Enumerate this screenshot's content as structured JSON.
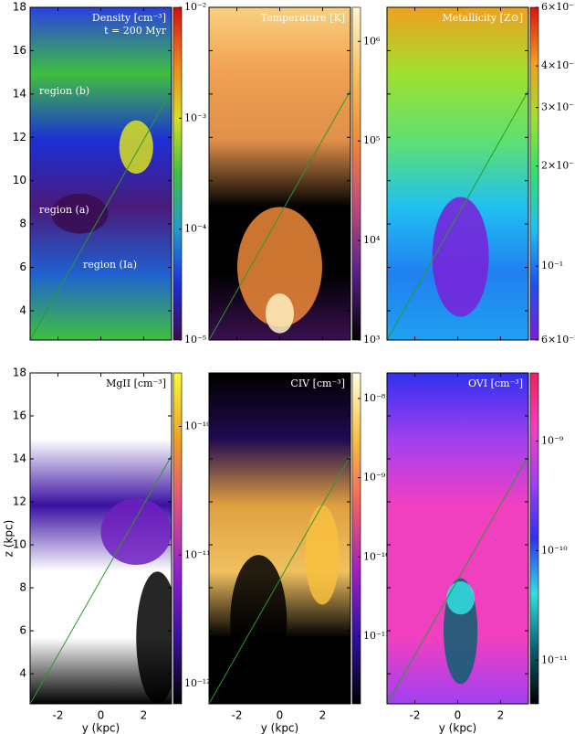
{
  "chart_data": [
    {
      "type": "heatmap",
      "title": "Density [cm⁻³]",
      "subtitle": "t = 200 Myr",
      "annotations": [
        "region (b)",
        "region (a)",
        "region (Ia)"
      ],
      "xlim": [
        -3.3,
        3.3
      ],
      "xticks": [
        -2,
        0,
        2
      ],
      "ylim": [
        2.65,
        18
      ],
      "yticks": [
        4,
        6,
        8,
        10,
        12,
        14,
        16,
        18
      ],
      "xtick_labels": false,
      "ytick_labels": true,
      "colorbar": {
        "log": true,
        "lim": [
          1e-05,
          0.01
        ],
        "colors": [
          "#3a0c4f",
          "#1b2fd6",
          "#1f9ed0",
          "#3fbf3f",
          "#d8e020",
          "#f08020",
          "#d01010"
        ],
        "ticks": [
          {
            "value": 0.01,
            "label": "10⁻²"
          },
          {
            "value": 0.001,
            "label": "10⁻³"
          },
          {
            "value": 0.0001,
            "label": "10⁻⁴"
          },
          {
            "value": 1e-05,
            "label": "10⁻⁵"
          }
        ]
      }
    },
    {
      "type": "heatmap",
      "title": "Temperature [K]",
      "xlim": [
        -3.3,
        3.3
      ],
      "xticks": [
        -2,
        0,
        2
      ],
      "ylim": [
        2.65,
        18
      ],
      "yticks": [
        4,
        6,
        8,
        10,
        12,
        14,
        16,
        18
      ],
      "xtick_labels": false,
      "ytick_labels": false,
      "colorbar": {
        "log": true,
        "lim": [
          1000,
          2200000
        ],
        "colors": [
          "#000000",
          "#5a1f8a",
          "#c04a7a",
          "#f08a3a",
          "#f8c060",
          "#fff8d0"
        ],
        "ticks": [
          {
            "value": 1000000,
            "label": "10⁶"
          },
          {
            "value": 100000,
            "label": "10⁵"
          },
          {
            "value": 10000,
            "label": "10⁴"
          },
          {
            "value": 1000,
            "label": "10³"
          }
        ]
      }
    },
    {
      "type": "heatmap",
      "title": "Metallicity [Z⊙]",
      "xlim": [
        -3.3,
        3.3
      ],
      "xticks": [
        -2,
        0,
        2
      ],
      "ylim": [
        2.65,
        18
      ],
      "yticks": [
        4,
        6,
        8,
        10,
        12,
        14,
        16,
        18
      ],
      "xtick_labels": false,
      "ytick_labels": false,
      "colorbar": {
        "log": true,
        "lim": [
          0.06,
          0.6
        ],
        "colors": [
          "#7a1fd8",
          "#2050f0",
          "#20c0f0",
          "#30e070",
          "#a0e030",
          "#f0a020",
          "#e01010"
        ],
        "ticks": [
          {
            "value": 0.6,
            "label": "6×10⁻¹"
          },
          {
            "value": 0.4,
            "label": "4×10⁻¹"
          },
          {
            "value": 0.3,
            "label": "3×10⁻¹"
          },
          {
            "value": 0.2,
            "label": "2×10⁻¹"
          },
          {
            "value": 0.1,
            "label": "10⁻¹"
          },
          {
            "value": 0.06,
            "label": "6×10⁻²"
          }
        ]
      }
    },
    {
      "type": "heatmap",
      "title": "MgII [cm⁻³]",
      "xlabel": "y (kpc)",
      "ylabel": "z (kpc)",
      "xlim": [
        -3.3,
        3.3
      ],
      "xticks": [
        -2,
        0,
        2
      ],
      "ylim": [
        2.6,
        18
      ],
      "yticks": [
        4,
        6,
        8,
        10,
        12,
        14,
        16,
        18
      ],
      "xtick_labels": true,
      "ytick_labels": true,
      "colorbar": {
        "log": true,
        "lim": [
          7e-13,
          2.6e-10
        ],
        "colors": [
          "#000000",
          "#3a10a0",
          "#9020d0",
          "#e05080",
          "#f0a020",
          "#f8f840"
        ],
        "ticks": [
          {
            "value": 1e-10,
            "label": "10⁻¹⁰"
          },
          {
            "value": 1e-11,
            "label": "10⁻¹¹"
          },
          {
            "value": 1e-12,
            "label": "10⁻¹²"
          }
        ]
      }
    },
    {
      "type": "heatmap",
      "title": "CIV [cm⁻³]",
      "xlabel": "y (kpc)",
      "xlim": [
        -3.3,
        3.3
      ],
      "xticks": [
        -2,
        0,
        2
      ],
      "ylim": [
        2.6,
        18
      ],
      "yticks": [
        4,
        6,
        8,
        10,
        12,
        14,
        16,
        18
      ],
      "xtick_labels": true,
      "ytick_labels": false,
      "colorbar": {
        "log": true,
        "lim": [
          1.4e-12,
          2.1e-08
        ],
        "colors": [
          "#000000",
          "#3010a0",
          "#a020c0",
          "#f06060",
          "#f8c040",
          "#ffffe0"
        ],
        "ticks": [
          {
            "value": 1e-08,
            "label": "10⁻⁸"
          },
          {
            "value": 1e-09,
            "label": "10⁻⁹"
          },
          {
            "value": 1e-10,
            "label": "10⁻¹⁰"
          },
          {
            "value": 1e-11,
            "label": "10⁻¹¹"
          }
        ]
      }
    },
    {
      "type": "heatmap",
      "title": "OVI [cm⁻³]",
      "xlabel": "y (kpc)",
      "xlim": [
        -3.3,
        3.3
      ],
      "xticks": [
        -2,
        0,
        2
      ],
      "ylim": [
        2.6,
        18
      ],
      "yticks": [
        4,
        6,
        8,
        10,
        12,
        14,
        16,
        18
      ],
      "xtick_labels": true,
      "ytick_labels": false,
      "colorbar": {
        "log": true,
        "lim": [
          4e-12,
          4.2e-09
        ],
        "colors": [
          "#000000",
          "#0a6070",
          "#30e0e0",
          "#3030f0",
          "#a040f0",
          "#f040c0",
          "#f02060"
        ],
        "ticks": [
          {
            "value": 1e-09,
            "label": "10⁻⁹"
          },
          {
            "value": 1e-10,
            "label": "10⁻¹⁰"
          },
          {
            "value": 1e-11,
            "label": "10⁻¹¹"
          }
        ]
      }
    }
  ]
}
